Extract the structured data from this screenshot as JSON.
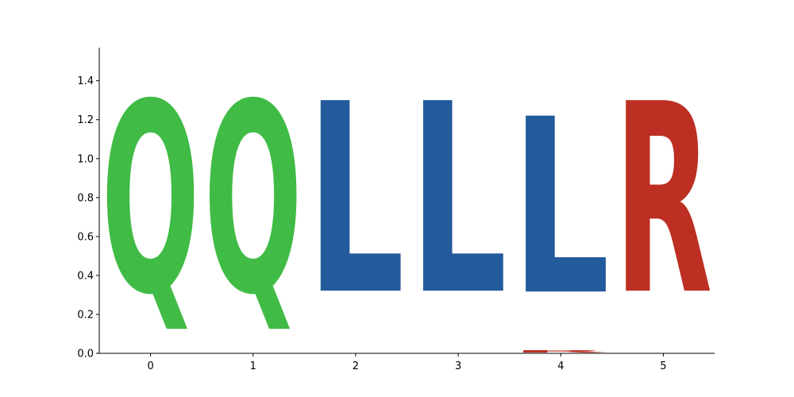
{
  "chart_data": {
    "type": "sequence-logo",
    "title": "",
    "xlabel": "",
    "ylabel": "",
    "x": [
      0,
      1,
      2,
      3,
      4,
      5
    ],
    "xlim": [
      -0.5,
      5.5
    ],
    "ylim": [
      0,
      1.57
    ],
    "x_ticks": [
      "0",
      "1",
      "2",
      "3",
      "4",
      "5"
    ],
    "y_ticks": [
      "0.0",
      "0.2",
      "0.4",
      "0.6",
      "0.8",
      "1.0",
      "1.2",
      "1.4"
    ],
    "grid": false,
    "legend": "none",
    "positions": [
      {
        "pos": 0,
        "letters": [
          {
            "char": "Q",
            "height": 1.57,
            "color": "#40bb45"
          }
        ]
      },
      {
        "pos": 1,
        "letters": [
          {
            "char": "Q",
            "height": 1.57,
            "color": "#40bb45"
          }
        ]
      },
      {
        "pos": 2,
        "letters": [
          {
            "char": "L",
            "height": 1.57,
            "color": "#235a9c"
          }
        ]
      },
      {
        "pos": 3,
        "letters": [
          {
            "char": "L",
            "height": 1.57,
            "color": "#235a9c"
          }
        ]
      },
      {
        "pos": 4,
        "letters": [
          {
            "char": "R",
            "height": 0.02,
            "color": "#bc2f22"
          },
          {
            "char": "L",
            "height": 1.45,
            "color": "#235a9c"
          }
        ]
      },
      {
        "pos": 5,
        "letters": [
          {
            "char": "R",
            "height": 1.57,
            "color": "#bc2f22"
          }
        ]
      }
    ]
  }
}
